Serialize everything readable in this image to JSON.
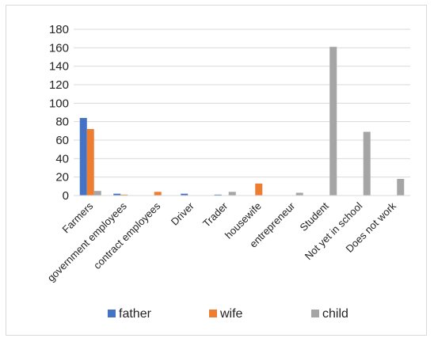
{
  "chart_data": {
    "type": "bar",
    "categories": [
      "Farmers",
      "government employees",
      "contract employees",
      "Driver",
      "Trader",
      "housewife",
      "entrepreneur",
      "Student",
      "Not yet in school",
      "Does not work"
    ],
    "series": [
      {
        "name": "father",
        "color": "#4472c4",
        "values": [
          84,
          2,
          0,
          2,
          1,
          0,
          0,
          0,
          0,
          0
        ]
      },
      {
        "name": "wife",
        "color": "#ed7d31",
        "values": [
          72,
          1,
          4,
          0,
          0,
          13,
          0,
          0,
          0,
          0
        ]
      },
      {
        "name": "child",
        "color": "#a5a5a5",
        "values": [
          5,
          0,
          0,
          0,
          4,
          0,
          3,
          161,
          69,
          18
        ]
      }
    ],
    "yticks": [
      "0",
      "20",
      "40",
      "60",
      "80",
      "100",
      "120",
      "140",
      "160",
      "180"
    ],
    "ylim": [
      0,
      180
    ],
    "grid": true,
    "legend": "bottom",
    "gridline_color": "#d9d9d9"
  }
}
